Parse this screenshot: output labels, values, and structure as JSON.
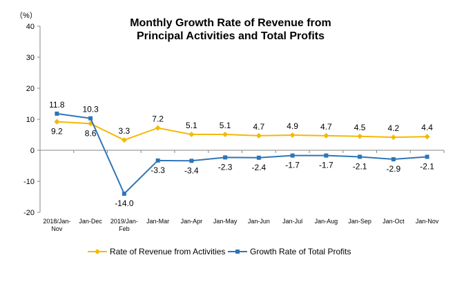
{
  "chart_data": {
    "type": "line",
    "title_lines": [
      "Monthly Growth Rate of Revenue from",
      "Principal Activities  and Total Profits"
    ],
    "unit_label": "（%）",
    "ylim": [
      -20,
      40
    ],
    "yticks": [
      -20,
      -10,
      0,
      10,
      20,
      30,
      40
    ],
    "categories": [
      [
        "2018/Jan-",
        "Nov"
      ],
      [
        "Jan-Dec"
      ],
      [
        "2019/Jan-",
        "Feb"
      ],
      [
        "Jan-Mar"
      ],
      [
        "Jan-Apr"
      ],
      [
        "Jan-May"
      ],
      [
        "Jan-Jun"
      ],
      [
        "Jan-Jul"
      ],
      [
        "Jan-Aug"
      ],
      [
        "Jan-Sep"
      ],
      [
        "Jan-Oct"
      ],
      [
        "Jan-Nov"
      ]
    ],
    "series": [
      {
        "name": "Rate of Revenue from Activities",
        "color": "#F5B800",
        "marker": "diamond",
        "label_position": "mixed",
        "values": [
          9.2,
          8.6,
          3.3,
          7.2,
          5.1,
          5.1,
          4.7,
          4.9,
          4.7,
          4.5,
          4.2,
          4.4
        ]
      },
      {
        "name": "Growth Rate of Total Profits",
        "color": "#2E75B6",
        "marker": "square",
        "label_position": "mixed",
        "values": [
          11.8,
          10.3,
          -14.0,
          -3.3,
          -3.4,
          -2.3,
          -2.4,
          -1.7,
          -1.7,
          -2.1,
          -2.9,
          -2.1
        ]
      }
    ],
    "grid": false,
    "legend_position": "bottom"
  }
}
